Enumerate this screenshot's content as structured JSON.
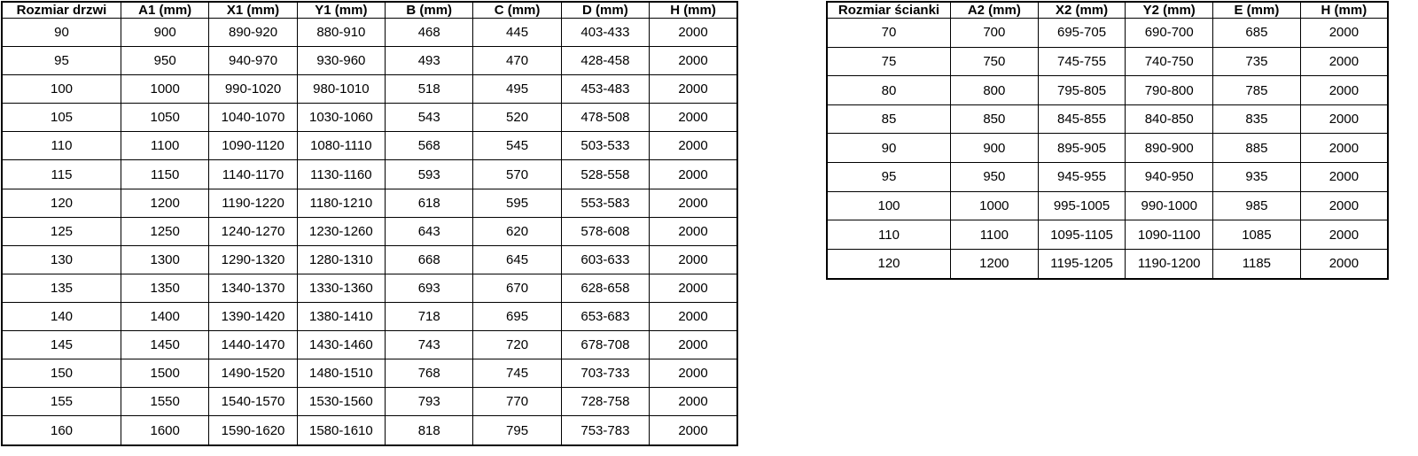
{
  "colors": {
    "border": "#000000",
    "text": "#000000",
    "background": "#ffffff"
  },
  "door_table": {
    "name": "Rozmiar drzwi",
    "headers": [
      "Rozmiar drzwi",
      "A1 (mm)",
      "X1 (mm)",
      "Y1 (mm)",
      "B (mm)",
      "C (mm)",
      "D (mm)",
      "H (mm)"
    ],
    "rows": [
      [
        "90",
        "900",
        "890-920",
        "880-910",
        "468",
        "445",
        "403-433",
        "2000"
      ],
      [
        "95",
        "950",
        "940-970",
        "930-960",
        "493",
        "470",
        "428-458",
        "2000"
      ],
      [
        "100",
        "1000",
        "990-1020",
        "980-1010",
        "518",
        "495",
        "453-483",
        "2000"
      ],
      [
        "105",
        "1050",
        "1040-1070",
        "1030-1060",
        "543",
        "520",
        "478-508",
        "2000"
      ],
      [
        "110",
        "1100",
        "1090-1120",
        "1080-1110",
        "568",
        "545",
        "503-533",
        "2000"
      ],
      [
        "115",
        "1150",
        "1140-1170",
        "1130-1160",
        "593",
        "570",
        "528-558",
        "2000"
      ],
      [
        "120",
        "1200",
        "1190-1220",
        "1180-1210",
        "618",
        "595",
        "553-583",
        "2000"
      ],
      [
        "125",
        "1250",
        "1240-1270",
        "1230-1260",
        "643",
        "620",
        "578-608",
        "2000"
      ],
      [
        "130",
        "1300",
        "1290-1320",
        "1280-1310",
        "668",
        "645",
        "603-633",
        "2000"
      ],
      [
        "135",
        "1350",
        "1340-1370",
        "1330-1360",
        "693",
        "670",
        "628-658",
        "2000"
      ],
      [
        "140",
        "1400",
        "1390-1420",
        "1380-1410",
        "718",
        "695",
        "653-683",
        "2000"
      ],
      [
        "145",
        "1450",
        "1440-1470",
        "1430-1460",
        "743",
        "720",
        "678-708",
        "2000"
      ],
      [
        "150",
        "1500",
        "1490-1520",
        "1480-1510",
        "768",
        "745",
        "703-733",
        "2000"
      ],
      [
        "155",
        "1550",
        "1540-1570",
        "1530-1560",
        "793",
        "770",
        "728-758",
        "2000"
      ],
      [
        "160",
        "1600",
        "1590-1620",
        "1580-1610",
        "818",
        "795",
        "753-783",
        "2000"
      ]
    ]
  },
  "wall_table": {
    "name": "Rozmiar ścianki",
    "headers": [
      "Rozmiar ścianki",
      "A2 (mm)",
      "X2 (mm)",
      "Y2 (mm)",
      "E (mm)",
      "H (mm)"
    ],
    "rows": [
      [
        "70",
        "700",
        "695-705",
        "690-700",
        "685",
        "2000"
      ],
      [
        "75",
        "750",
        "745-755",
        "740-750",
        "735",
        "2000"
      ],
      [
        "80",
        "800",
        "795-805",
        "790-800",
        "785",
        "2000"
      ],
      [
        "85",
        "850",
        "845-855",
        "840-850",
        "835",
        "2000"
      ],
      [
        "90",
        "900",
        "895-905",
        "890-900",
        "885",
        "2000"
      ],
      [
        "95",
        "950",
        "945-955",
        "940-950",
        "935",
        "2000"
      ],
      [
        "100",
        "1000",
        "995-1005",
        "990-1000",
        "985",
        "2000"
      ],
      [
        "110",
        "1100",
        "1095-1105",
        "1090-1100",
        "1085",
        "2000"
      ],
      [
        "120",
        "1200",
        "1195-1205",
        "1190-1200",
        "1185",
        "2000"
      ]
    ]
  }
}
